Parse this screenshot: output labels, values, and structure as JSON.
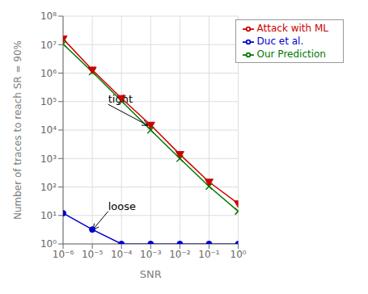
{
  "chart_data": {
    "type": "line",
    "x_label": "SNR",
    "y_label": "Number of traces to reach SR = 90%",
    "x": [
      1e-06,
      1e-05,
      0.0001,
      0.001,
      0.01,
      0.1,
      1.0
    ],
    "series": [
      {
        "name": "Duc et al.",
        "color": "#0000cc",
        "marker": "circle",
        "line_style": "solid",
        "values": [
          12.0,
          3.2,
          1.0,
          1.0,
          1.0,
          1.0,
          1.0
        ]
      },
      {
        "name": "Our Prediction",
        "color": "#007700",
        "marker": "x",
        "line_style": "solid",
        "values": [
          10500000.0,
          1100000.0,
          105000.0,
          10000.0,
          1000.0,
          105.0,
          14.0
        ]
      },
      {
        "name": "Attack with ML",
        "color": "#cc0000",
        "marker": "triangle-down",
        "line_style": "solid",
        "values": [
          16000000.0,
          1300000.0,
          130000.0,
          15000.0,
          1400.0,
          150.0,
          26.0
        ]
      }
    ],
    "log": true,
    "xlim": [
      1e-06,
      1
    ],
    "ylim": [
      1,
      100000000.0
    ],
    "xticks": [
      {
        "value": 1e-06,
        "label": "10⁻⁶"
      },
      {
        "value": 1e-05,
        "label": "10⁻⁵"
      },
      {
        "value": 0.0001,
        "label": "10⁻⁴"
      },
      {
        "value": 0.001,
        "label": "10⁻³"
      },
      {
        "value": 0.01,
        "label": "10⁻²"
      },
      {
        "value": 0.1,
        "label": "10⁻¹"
      },
      {
        "value": 1,
        "label": "10⁰"
      }
    ],
    "yticks": [
      {
        "value": 1,
        "label": "10⁰"
      },
      {
        "value": 10,
        "label": "10¹"
      },
      {
        "value": 100,
        "label": "10²"
      },
      {
        "value": 1000,
        "label": "10³"
      },
      {
        "value": 10000,
        "label": "10⁴"
      },
      {
        "value": 100000,
        "label": "10⁵"
      },
      {
        "value": 1000000,
        "label": "10⁶"
      },
      {
        "value": 10000000,
        "label": "10⁷"
      },
      {
        "value": 100000000,
        "label": "10⁸"
      }
    ],
    "grid": true,
    "legend": "upper right",
    "annotations": [
      {
        "text": "tight",
        "xy": [
          0.0008,
          14500.0
        ],
        "xytext": [
          3.5e-05,
          80000.0
        ]
      },
      {
        "text": "loose",
        "xy": [
          1.05e-05,
          3.2
        ],
        "xytext": [
          3.5e-05,
          14.0
        ]
      }
    ]
  }
}
